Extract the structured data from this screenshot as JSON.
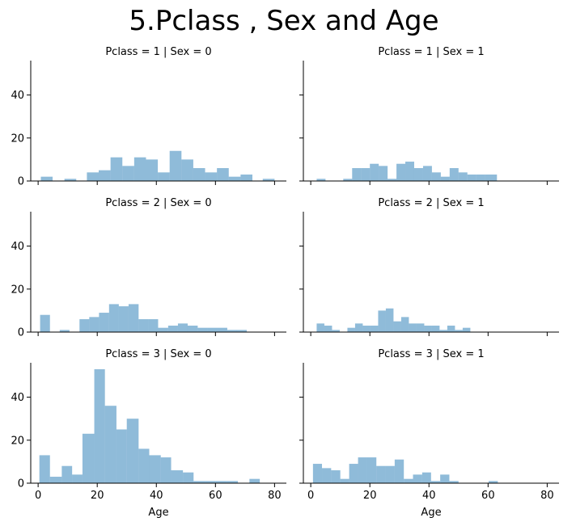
{
  "chart_data": {
    "type": "bar",
    "title": "5.Pclass , Sex and Age",
    "xlabel": "Age",
    "ylabel": "",
    "xlim": [
      -2.5,
      84
    ],
    "ylim": [
      0,
      56
    ],
    "xticks": [
      0,
      20,
      40,
      60,
      80
    ],
    "yticks": [
      0,
      20,
      40
    ],
    "grid": false,
    "bar_color": "#1f77b4",
    "bar_opacity": 0.5,
    "panels": [
      {
        "title": "Pclass = 1 | Sex = 0",
        "row": 0,
        "col": 0,
        "bins": [
          {
            "x0": 0.92,
            "x1": 4.9,
            "count": 2
          },
          {
            "x0": 8.9,
            "x1": 12.9,
            "count": 1
          },
          {
            "x0": 16.5,
            "x1": 20.5,
            "count": 4
          },
          {
            "x0": 20.5,
            "x1": 24.5,
            "count": 5
          },
          {
            "x0": 24.5,
            "x1": 28.5,
            "count": 11
          },
          {
            "x0": 28.5,
            "x1": 32.5,
            "count": 7
          },
          {
            "x0": 32.5,
            "x1": 36.5,
            "count": 11
          },
          {
            "x0": 36.5,
            "x1": 40.5,
            "count": 10
          },
          {
            "x0": 40.5,
            "x1": 44.5,
            "count": 4
          },
          {
            "x0": 44.5,
            "x1": 48.5,
            "count": 14
          },
          {
            "x0": 48.5,
            "x1": 52.5,
            "count": 10
          },
          {
            "x0": 52.5,
            "x1": 56.5,
            "count": 6
          },
          {
            "x0": 56.5,
            "x1": 60.5,
            "count": 4
          },
          {
            "x0": 60.5,
            "x1": 64.5,
            "count": 6
          },
          {
            "x0": 64.5,
            "x1": 68.5,
            "count": 2
          },
          {
            "x0": 68.5,
            "x1": 72.5,
            "count": 3
          },
          {
            "x0": 76,
            "x1": 80,
            "count": 1
          }
        ]
      },
      {
        "title": "Pclass = 1 | Sex = 1",
        "row": 0,
        "col": 1,
        "bins": [
          {
            "x0": 2,
            "x1": 5,
            "count": 1
          },
          {
            "x0": 11,
            "x1": 14,
            "count": 1
          },
          {
            "x0": 14,
            "x1": 17,
            "count": 6
          },
          {
            "x0": 17,
            "x1": 20,
            "count": 6
          },
          {
            "x0": 20,
            "x1": 23,
            "count": 8
          },
          {
            "x0": 23,
            "x1": 26,
            "count": 7
          },
          {
            "x0": 26,
            "x1": 29,
            "count": 1
          },
          {
            "x0": 29,
            "x1": 32,
            "count": 8
          },
          {
            "x0": 32,
            "x1": 35,
            "count": 9
          },
          {
            "x0": 35,
            "x1": 38,
            "count": 6
          },
          {
            "x0": 38,
            "x1": 41,
            "count": 7
          },
          {
            "x0": 41,
            "x1": 44,
            "count": 4
          },
          {
            "x0": 44,
            "x1": 47,
            "count": 2
          },
          {
            "x0": 47,
            "x1": 50,
            "count": 6
          },
          {
            "x0": 50,
            "x1": 53,
            "count": 4
          },
          {
            "x0": 53,
            "x1": 56,
            "count": 3
          },
          {
            "x0": 56,
            "x1": 59,
            "count": 3
          },
          {
            "x0": 59,
            "x1": 63,
            "count": 3
          }
        ]
      },
      {
        "title": "Pclass = 2 | Sex = 0",
        "row": 1,
        "col": 0,
        "bins": [
          {
            "x0": 0.67,
            "x1": 4,
            "count": 8
          },
          {
            "x0": 7.3,
            "x1": 10.6,
            "count": 1
          },
          {
            "x0": 14,
            "x1": 17.3,
            "count": 6
          },
          {
            "x0": 17.3,
            "x1": 20.6,
            "count": 7
          },
          {
            "x0": 20.6,
            "x1": 24,
            "count": 9
          },
          {
            "x0": 24,
            "x1": 27.3,
            "count": 13
          },
          {
            "x0": 27.3,
            "x1": 30.6,
            "count": 12
          },
          {
            "x0": 30.6,
            "x1": 34,
            "count": 13
          },
          {
            "x0": 34,
            "x1": 37.3,
            "count": 6
          },
          {
            "x0": 37.3,
            "x1": 40.6,
            "count": 6
          },
          {
            "x0": 40.6,
            "x1": 44,
            "count": 2
          },
          {
            "x0": 44,
            "x1": 47.3,
            "count": 3
          },
          {
            "x0": 47.3,
            "x1": 50.6,
            "count": 4
          },
          {
            "x0": 50.6,
            "x1": 54,
            "count": 3
          },
          {
            "x0": 54,
            "x1": 57.3,
            "count": 2
          },
          {
            "x0": 57.3,
            "x1": 60.6,
            "count": 2
          },
          {
            "x0": 60.6,
            "x1": 64,
            "count": 2
          },
          {
            "x0": 64,
            "x1": 67.3,
            "count": 1
          },
          {
            "x0": 67.3,
            "x1": 70.6,
            "count": 1
          }
        ]
      },
      {
        "title": "Pclass = 2 | Sex = 1",
        "row": 1,
        "col": 1,
        "bins": [
          {
            "x0": 2,
            "x1": 4.6,
            "count": 4
          },
          {
            "x0": 4.6,
            "x1": 7.2,
            "count": 3
          },
          {
            "x0": 7.2,
            "x1": 9.8,
            "count": 1
          },
          {
            "x0": 12.4,
            "x1": 15,
            "count": 2
          },
          {
            "x0": 15,
            "x1": 17.6,
            "count": 4
          },
          {
            "x0": 17.6,
            "x1": 20.2,
            "count": 3
          },
          {
            "x0": 20.2,
            "x1": 22.8,
            "count": 3
          },
          {
            "x0": 22.8,
            "x1": 25.4,
            "count": 10
          },
          {
            "x0": 25.4,
            "x1": 28,
            "count": 11
          },
          {
            "x0": 28,
            "x1": 30.6,
            "count": 5
          },
          {
            "x0": 30.6,
            "x1": 33.2,
            "count": 7
          },
          {
            "x0": 33.2,
            "x1": 35.8,
            "count": 4
          },
          {
            "x0": 35.8,
            "x1": 38.4,
            "count": 4
          },
          {
            "x0": 38.4,
            "x1": 41,
            "count": 3
          },
          {
            "x0": 41,
            "x1": 43.6,
            "count": 3
          },
          {
            "x0": 43.6,
            "x1": 46.2,
            "count": 1
          },
          {
            "x0": 46.2,
            "x1": 48.8,
            "count": 3
          },
          {
            "x0": 48.8,
            "x1": 51.4,
            "count": 1
          },
          {
            "x0": 51.4,
            "x1": 54,
            "count": 2
          }
        ]
      },
      {
        "title": "Pclass = 3 | Sex = 0",
        "row": 2,
        "col": 0,
        "bins": [
          {
            "x0": 0.42,
            "x1": 4,
            "count": 13
          },
          {
            "x0": 4,
            "x1": 8,
            "count": 3
          },
          {
            "x0": 8,
            "x1": 11.5,
            "count": 8
          },
          {
            "x0": 11.5,
            "x1": 15,
            "count": 4
          },
          {
            "x0": 15,
            "x1": 19,
            "count": 23
          },
          {
            "x0": 19,
            "x1": 22.6,
            "count": 53
          },
          {
            "x0": 22.6,
            "x1": 26.5,
            "count": 36
          },
          {
            "x0": 26.5,
            "x1": 30,
            "count": 25
          },
          {
            "x0": 30,
            "x1": 34,
            "count": 30
          },
          {
            "x0": 34,
            "x1": 37.6,
            "count": 16
          },
          {
            "x0": 37.6,
            "x1": 41.5,
            "count": 13
          },
          {
            "x0": 41.5,
            "x1": 45,
            "count": 12
          },
          {
            "x0": 45,
            "x1": 49,
            "count": 6
          },
          {
            "x0": 49,
            "x1": 52.6,
            "count": 5
          },
          {
            "x0": 52.6,
            "x1": 56.5,
            "count": 1
          },
          {
            "x0": 56.5,
            "x1": 60,
            "count": 1
          },
          {
            "x0": 60,
            "x1": 64,
            "count": 1
          },
          {
            "x0": 64,
            "x1": 67.6,
            "count": 1
          },
          {
            "x0": 71.5,
            "x1": 75,
            "count": 2
          }
        ]
      },
      {
        "title": "Pclass = 3 | Sex = 1",
        "row": 2,
        "col": 1,
        "bins": [
          {
            "x0": 0.75,
            "x1": 3.8,
            "count": 9
          },
          {
            "x0": 3.8,
            "x1": 6.9,
            "count": 7
          },
          {
            "x0": 6.9,
            "x1": 10,
            "count": 6
          },
          {
            "x0": 10,
            "x1": 13,
            "count": 2
          },
          {
            "x0": 13,
            "x1": 16,
            "count": 9
          },
          {
            "x0": 16,
            "x1": 19,
            "count": 12
          },
          {
            "x0": 19,
            "x1": 22.2,
            "count": 12
          },
          {
            "x0": 22.2,
            "x1": 25.3,
            "count": 8
          },
          {
            "x0": 25.3,
            "x1": 28.4,
            "count": 8
          },
          {
            "x0": 28.4,
            "x1": 31.5,
            "count": 11
          },
          {
            "x0": 31.5,
            "x1": 34.6,
            "count": 2
          },
          {
            "x0": 34.6,
            "x1": 37.7,
            "count": 4
          },
          {
            "x0": 37.7,
            "x1": 40.7,
            "count": 5
          },
          {
            "x0": 40.7,
            "x1": 43.8,
            "count": 1
          },
          {
            "x0": 43.8,
            "x1": 46.9,
            "count": 4
          },
          {
            "x0": 46.9,
            "x1": 50,
            "count": 1
          },
          {
            "x0": 60.2,
            "x1": 63.3,
            "count": 1
          }
        ]
      }
    ]
  }
}
